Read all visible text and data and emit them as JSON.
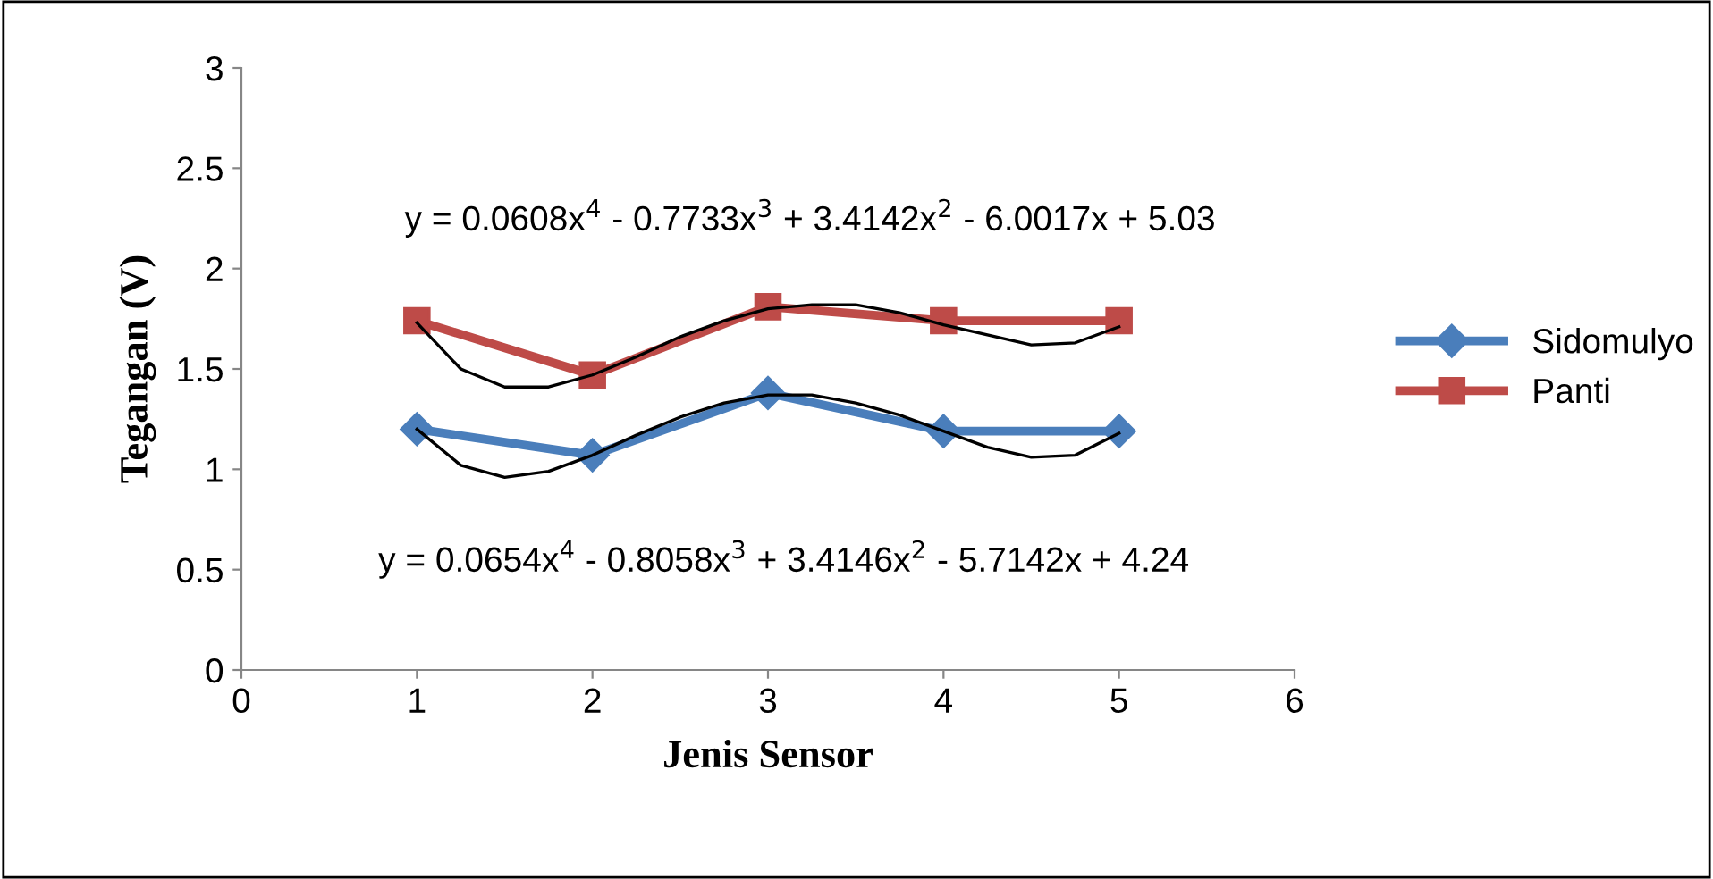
{
  "chart_data": {
    "type": "line",
    "xlabel": "Jenis Sensor",
    "ylabel": "Tegangan (V)",
    "xlim": [
      0,
      6
    ],
    "xticks": [
      0,
      1,
      2,
      3,
      4,
      5,
      6
    ],
    "ylim": [
      0,
      3
    ],
    "yticks": [
      0,
      0.5,
      1,
      1.5,
      2,
      2.5,
      3
    ],
    "grid": false,
    "legend": "right",
    "series": [
      {
        "name": "Sidomulyo",
        "color": "#4a7ebb",
        "marker": "diamond",
        "x": [
          1,
          2,
          3,
          4,
          5
        ],
        "values": [
          1.2,
          1.07,
          1.38,
          1.19,
          1.19
        ]
      },
      {
        "name": "Panti",
        "color": "#be4b48",
        "marker": "square",
        "x": [
          1,
          2,
          3,
          4,
          5
        ],
        "values": [
          1.74,
          1.47,
          1.81,
          1.74,
          1.74
        ]
      },
      {
        "color": "#000000",
        "marker": "none",
        "x": [
          1,
          1.25,
          1.5,
          1.75,
          2,
          2.25,
          2.5,
          2.75,
          3,
          3.25,
          3.5,
          3.75,
          4,
          4.25,
          4.5,
          4.75,
          5
        ],
        "values": [
          1.2,
          1.02,
          0.96,
          0.99,
          1.07,
          1.17,
          1.26,
          1.33,
          1.37,
          1.37,
          1.33,
          1.27,
          1.19,
          1.11,
          1.06,
          1.07,
          1.18
        ]
      },
      {
        "color": "#000000",
        "marker": "none",
        "x": [
          1,
          1.25,
          1.5,
          1.75,
          2,
          2.25,
          2.5,
          2.75,
          3,
          3.25,
          3.5,
          3.75,
          4,
          4.25,
          4.5,
          4.75,
          5
        ],
        "values": [
          1.73,
          1.5,
          1.41,
          1.41,
          1.47,
          1.56,
          1.66,
          1.74,
          1.8,
          1.82,
          1.82,
          1.78,
          1.72,
          1.67,
          1.62,
          1.63,
          1.71
        ]
      }
    ],
    "annotations": [
      "y = 0.0608x$^{4}$ - 0.7733x$^{3}$ + 3.4142x$^{2}$ - 6.0017x + 5.03",
      "y = 0.0654x$^{4}$ - 0.8058x$^{3}$ + 3.4146x$^{2}$ - 5.7142x + 4.24"
    ]
  }
}
